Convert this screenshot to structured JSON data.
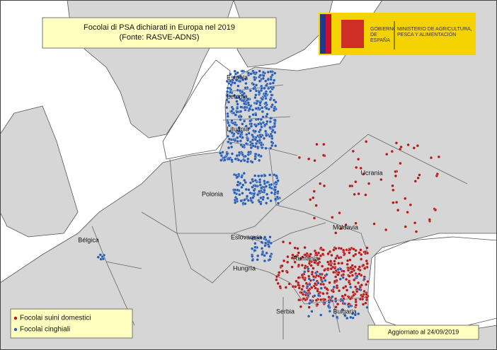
{
  "header": {
    "title": "Focolai di PSA dichiarati in Europa nel 2019",
    "subtitle": "(Fonte: RASVE-ADNS)"
  },
  "logo": {
    "government": "GOBIERNO DE ESPAÑA",
    "ministry": "MINISTERIO DE AGRICULTURA, PESCA Y ALIMENTACIÓN"
  },
  "countries": [
    "Estonia",
    "Letonia",
    "Lituania",
    "Polonia",
    "Ucrania",
    "Moldavia",
    "Eslovaquia",
    "Hungría",
    "Rumania",
    "Serbia",
    "Bulgaria",
    "Bélgica"
  ],
  "legend": [
    "Focolai suini domestici",
    "Focolai cinghiali"
  ],
  "footer": "Aggiornato al 24/09/2019"
}
